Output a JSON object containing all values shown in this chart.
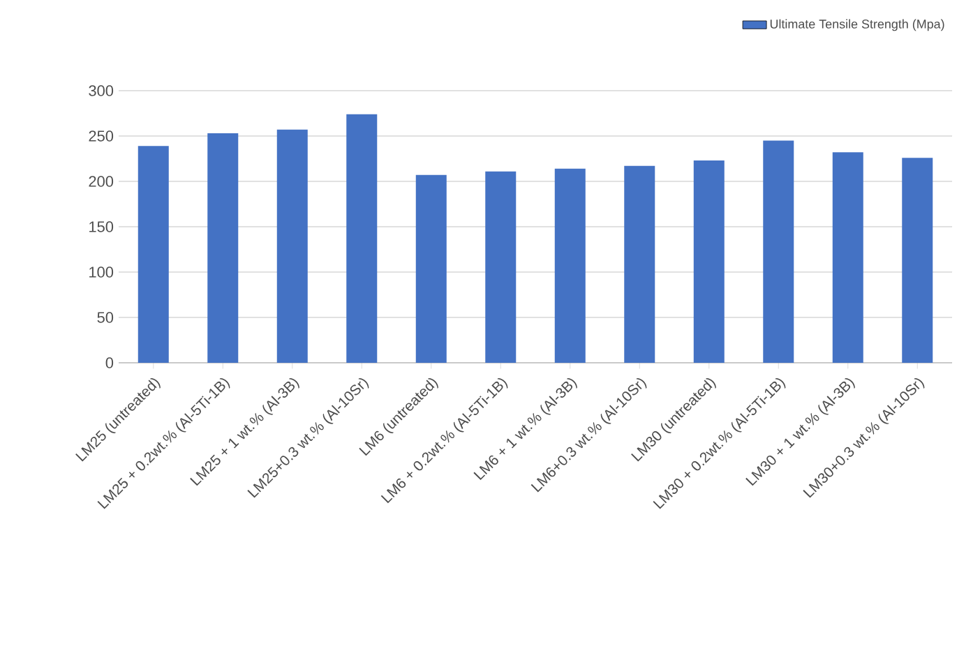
{
  "chart_data": {
    "type": "bar",
    "categories": [
      "LM25 (untreated)",
      "LM25 + 0.2wt.% (Al-5Ti-1B)",
      "LM25 + 1 wt.% (Al-3B)",
      "LM25+0.3 wt.% (Al-10Sr)",
      "LM6 (untreated)",
      "LM6 + 0.2wt.% (Al-5Ti-1B)",
      "LM6 + 1 wt.% (Al-3B)",
      "LM6+0.3 wt.% (Al-10Sr)",
      "LM30 (untreated)",
      "LM30 + 0.2wt.% (Al-5Ti-1B)",
      "LM30 + 1 wt.% (Al-3B)",
      "LM30+0.3 wt.% (Al-10Sr)"
    ],
    "series": [
      {
        "name": "Ultimate Tensile Strength (Mpa)",
        "color": "#4472c4",
        "values": [
          239,
          253,
          257,
          274,
          207,
          211,
          214,
          217,
          223,
          245,
          232,
          226
        ]
      }
    ],
    "ylim": [
      0,
      300
    ],
    "yticks": [
      0,
      50,
      100,
      150,
      200,
      250,
      300
    ],
    "grid": "y",
    "legend": "top right"
  }
}
